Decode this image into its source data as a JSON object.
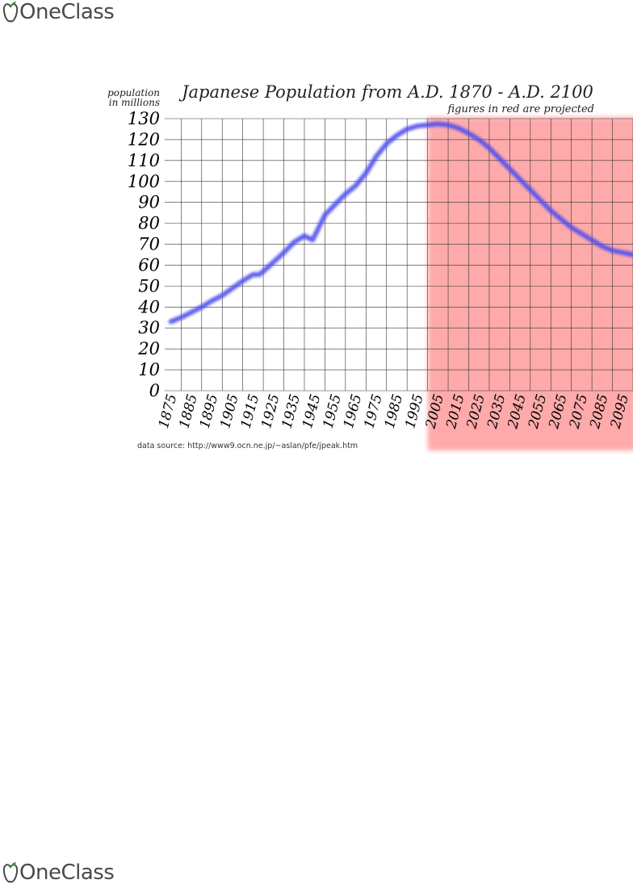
{
  "brand": {
    "name": "OneClass",
    "accent": "#3a8f3a",
    "text_color": "#4a4a4a"
  },
  "chart_data": {
    "type": "line",
    "title": "Japanese Population from A.D. 1870 - A.D. 2100",
    "subtitle": "figures in red are projected",
    "ylabel_line1": "population",
    "ylabel_line2": "in millions",
    "source": "data source: http://www9.ocn.ne.jp/~aslan/pfe/jpeak.htm",
    "xlim": [
      1872,
      2100
    ],
    "ylim": [
      0,
      130
    ],
    "yticks": [
      0,
      10,
      20,
      30,
      40,
      50,
      60,
      70,
      80,
      90,
      100,
      110,
      120,
      130
    ],
    "xticks": [
      1875,
      1885,
      1895,
      1905,
      1915,
      1925,
      1935,
      1945,
      1955,
      1965,
      1975,
      1985,
      1995,
      2005,
      2015,
      2025,
      2035,
      2045,
      2055,
      2065,
      2075,
      2085,
      2095
    ],
    "grid": true,
    "projected_from": 2000,
    "projected_color": "#ffaaaa",
    "line_color": "#5050ee",
    "series": [
      {
        "x": [
          1875,
          1880,
          1885,
          1890,
          1895,
          1900,
          1905,
          1910,
          1915,
          1918,
          1920,
          1925,
          1930,
          1935,
          1940,
          1944,
          1947,
          1950,
          1955,
          1960,
          1965,
          1970,
          1975,
          1980,
          1985,
          1990,
          1995,
          2000,
          2005,
          2010,
          2015,
          2020,
          2025,
          2030,
          2035,
          2040,
          2045,
          2050,
          2055,
          2060,
          2065,
          2070,
          2075,
          2080,
          2085,
          2090,
          2095,
          2100
        ],
        "y": [
          33,
          35,
          37.5,
          40,
          43,
          45.5,
          49,
          52.5,
          55.5,
          55.5,
          57,
          61.5,
          66,
          71,
          74,
          72,
          78,
          84,
          89,
          94,
          98,
          104,
          112,
          118,
          122,
          125,
          126.5,
          127,
          127.5,
          127,
          125.5,
          123,
          120,
          116,
          111,
          106,
          101,
          96,
          91,
          86,
          82,
          78,
          75,
          72,
          69,
          67,
          66,
          65
        ]
      }
    ]
  }
}
